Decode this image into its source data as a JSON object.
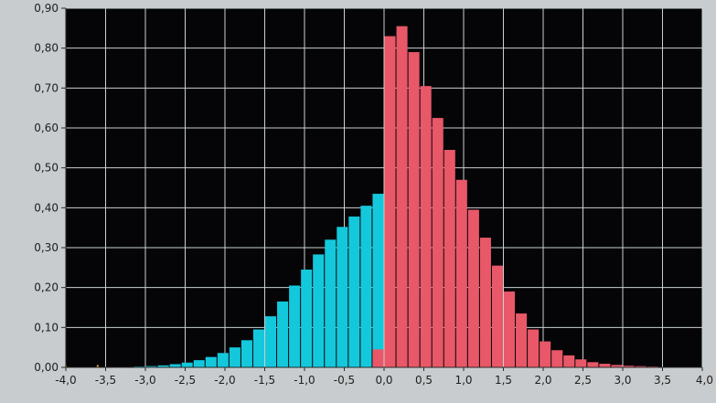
{
  "chart_data": {
    "type": "bar",
    "title": "",
    "xlabel": "",
    "ylabel": "",
    "xlim": [
      -4.0,
      4.0
    ],
    "ylim": [
      0.0,
      0.9
    ],
    "grid": true,
    "bar_width": 0.15,
    "x_ticks": [
      "-4,0",
      "-3,5",
      "-3,0",
      "-2,5",
      "-2,0",
      "-1,5",
      "-1,0",
      "-0,5",
      "0,0",
      "0,5",
      "1,0",
      "1,5",
      "2,0",
      "2,5",
      "3,0",
      "3,5",
      "4,0"
    ],
    "y_ticks": [
      "0,00",
      "0,10",
      "0,20",
      "0,30",
      "0,40",
      "0,50",
      "0,60",
      "0,70",
      "0,80",
      "0,90"
    ],
    "colors": {
      "plot_background": "#050508",
      "grid": "#c8d0d0",
      "page_background": "#c8ccce",
      "negative": "#14c8dc",
      "positive": "#e85868",
      "small_marks": "#d8a030"
    },
    "series": [
      {
        "color": "#14c8dc",
        "x": [
          -3.975,
          -3.825,
          -3.675,
          -3.525,
          -3.375,
          -3.225,
          -3.075,
          -2.925,
          -2.775,
          -2.625,
          -2.475,
          -2.325,
          -2.175,
          -2.025,
          -1.875,
          -1.725,
          -1.575,
          -1.425,
          -1.275,
          -1.125,
          -0.975,
          -0.825,
          -0.675,
          -0.525,
          -0.375,
          -0.225,
          -0.075
        ],
        "values": [
          0.0,
          0.0,
          0.0,
          0.0,
          0.0,
          0.0,
          0.002,
          0.003,
          0.005,
          0.008,
          0.012,
          0.018,
          0.026,
          0.036,
          0.05,
          0.068,
          0.095,
          0.128,
          0.165,
          0.205,
          0.245,
          0.283,
          0.32,
          0.352,
          0.378,
          0.405,
          0.435
        ]
      },
      {
        "color": "#e85868",
        "x": [
          -0.075,
          0.075,
          0.225,
          0.375,
          0.525,
          0.675,
          0.825,
          0.975,
          1.125,
          1.275,
          1.425,
          1.575,
          1.725,
          1.875,
          2.025,
          2.175,
          2.325,
          2.475,
          2.625,
          2.775,
          2.925,
          3.075,
          3.225,
          3.375,
          3.525,
          3.675,
          3.825,
          3.975
        ],
        "values": [
          0.045,
          0.83,
          0.855,
          0.79,
          0.705,
          0.625,
          0.545,
          0.47,
          0.395,
          0.325,
          0.255,
          0.19,
          0.135,
          0.095,
          0.065,
          0.043,
          0.03,
          0.02,
          0.013,
          0.009,
          0.006,
          0.004,
          0.003,
          0.002,
          0.001,
          0.0,
          0.0,
          0.0
        ]
      }
    ],
    "marks": {
      "color": "#d8a030",
      "x": [
        -4.0,
        -3.6
      ],
      "values": [
        0.004,
        0.006
      ]
    }
  }
}
